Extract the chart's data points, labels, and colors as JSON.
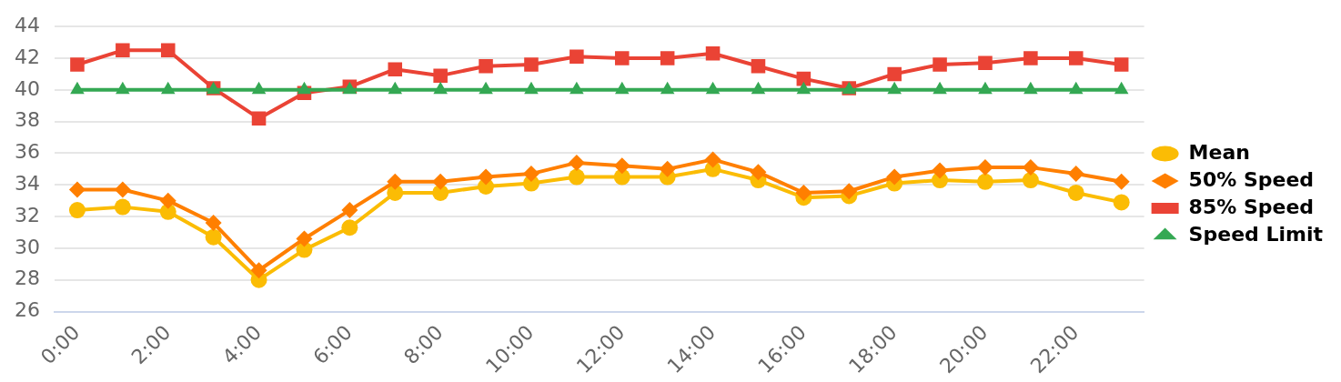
{
  "chart_data": {
    "type": "line",
    "categories": [
      "0:00",
      null,
      "2:00",
      null,
      "4:00",
      null,
      "6:00",
      null,
      "8:00",
      null,
      "10:00",
      null,
      "12:00",
      null,
      "14:00",
      null,
      "16:00",
      null,
      "18:00",
      null,
      "20:00",
      null,
      "22:00",
      null
    ],
    "series": [
      {
        "name": "Mean",
        "color": "#fbbc04",
        "marker": "circle",
        "values": [
          32.4,
          32.6,
          32.3,
          30.7,
          28.0,
          29.9,
          31.3,
          33.5,
          33.5,
          33.9,
          34.1,
          34.5,
          34.5,
          34.5,
          35.0,
          34.3,
          33.2,
          33.3,
          34.1,
          34.3,
          34.2,
          34.3,
          33.5,
          32.9
        ]
      },
      {
        "name": "50% Speed",
        "color": "#ff7f00",
        "marker": "diamond",
        "values": [
          33.7,
          33.7,
          33.0,
          31.6,
          28.6,
          30.6,
          32.4,
          34.2,
          34.2,
          34.5,
          34.7,
          35.4,
          35.2,
          35.0,
          35.6,
          34.8,
          33.5,
          33.6,
          34.5,
          34.9,
          35.1,
          35.1,
          34.7,
          34.2
        ]
      },
      {
        "name": "85% Speed",
        "color": "#ea4335",
        "marker": "square",
        "values": [
          41.6,
          42.5,
          42.5,
          40.1,
          38.2,
          39.8,
          40.2,
          41.3,
          40.9,
          41.5,
          41.6,
          42.1,
          42.0,
          42.0,
          42.3,
          41.5,
          40.7,
          40.1,
          41.0,
          41.6,
          41.7,
          42.0,
          42.0,
          41.6
        ]
      },
      {
        "name": "Speed Limit",
        "color": "#34a853",
        "marker": "triangle",
        "values": [
          40,
          40,
          40,
          40,
          40,
          40,
          40,
          40,
          40,
          40,
          40,
          40,
          40,
          40,
          40,
          40,
          40,
          40,
          40,
          40,
          40,
          40,
          40,
          40
        ]
      }
    ],
    "ylim": [
      26,
      44
    ],
    "yticks": [
      26,
      28,
      30,
      32,
      34,
      36,
      38,
      40,
      42,
      44
    ],
    "grid": "y",
    "legend": "right",
    "line_style": "solid"
  }
}
